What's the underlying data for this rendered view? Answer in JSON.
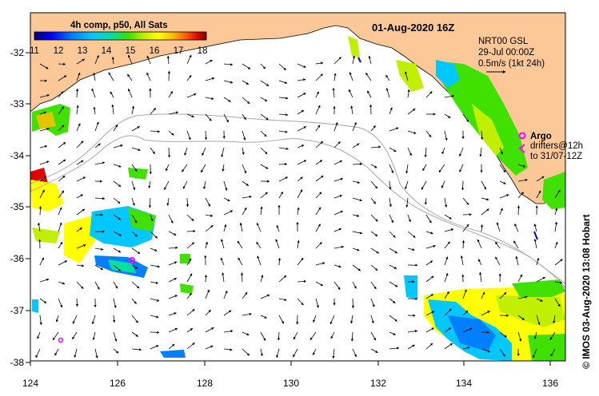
{
  "title": "01-Aug-2020 16Z",
  "colorbar": {
    "label": "4h comp, p50, All Sats",
    "ticks": [
      "11",
      "12",
      "13",
      "14",
      "15",
      "16",
      "17",
      "18"
    ],
    "colors": [
      "#000080",
      "#0000ff",
      "#0080ff",
      "#00c8ff",
      "#00e0a0",
      "#40e000",
      "#c0f000",
      "#ffff00",
      "#ffc000",
      "#ff6000",
      "#e00000",
      "#800000"
    ]
  },
  "info": {
    "product": "NRT00 GSL",
    "date": "29-Jul 00:00Z",
    "scale_text": "0.5m/s (1kt 24h)"
  },
  "legend": {
    "argo_label": "Argo",
    "drifters_line1": "drifters@12h",
    "drifters_line2": "to 31/07-12Z",
    "argo_color": "#ff00ff"
  },
  "credit": "© IMOS 03-Aug-2020 13:08 Hobart",
  "axes": {
    "x_ticks": [
      "124",
      "126",
      "128",
      "130",
      "132",
      "134",
      "136"
    ],
    "y_ticks": [
      "-32",
      "-33",
      "-34",
      "-35",
      "-36",
      "-37",
      "-38"
    ]
  },
  "colors": {
    "land": "#fcc898",
    "ocean": "#ffffff",
    "isobath": "#a8a8a8"
  }
}
